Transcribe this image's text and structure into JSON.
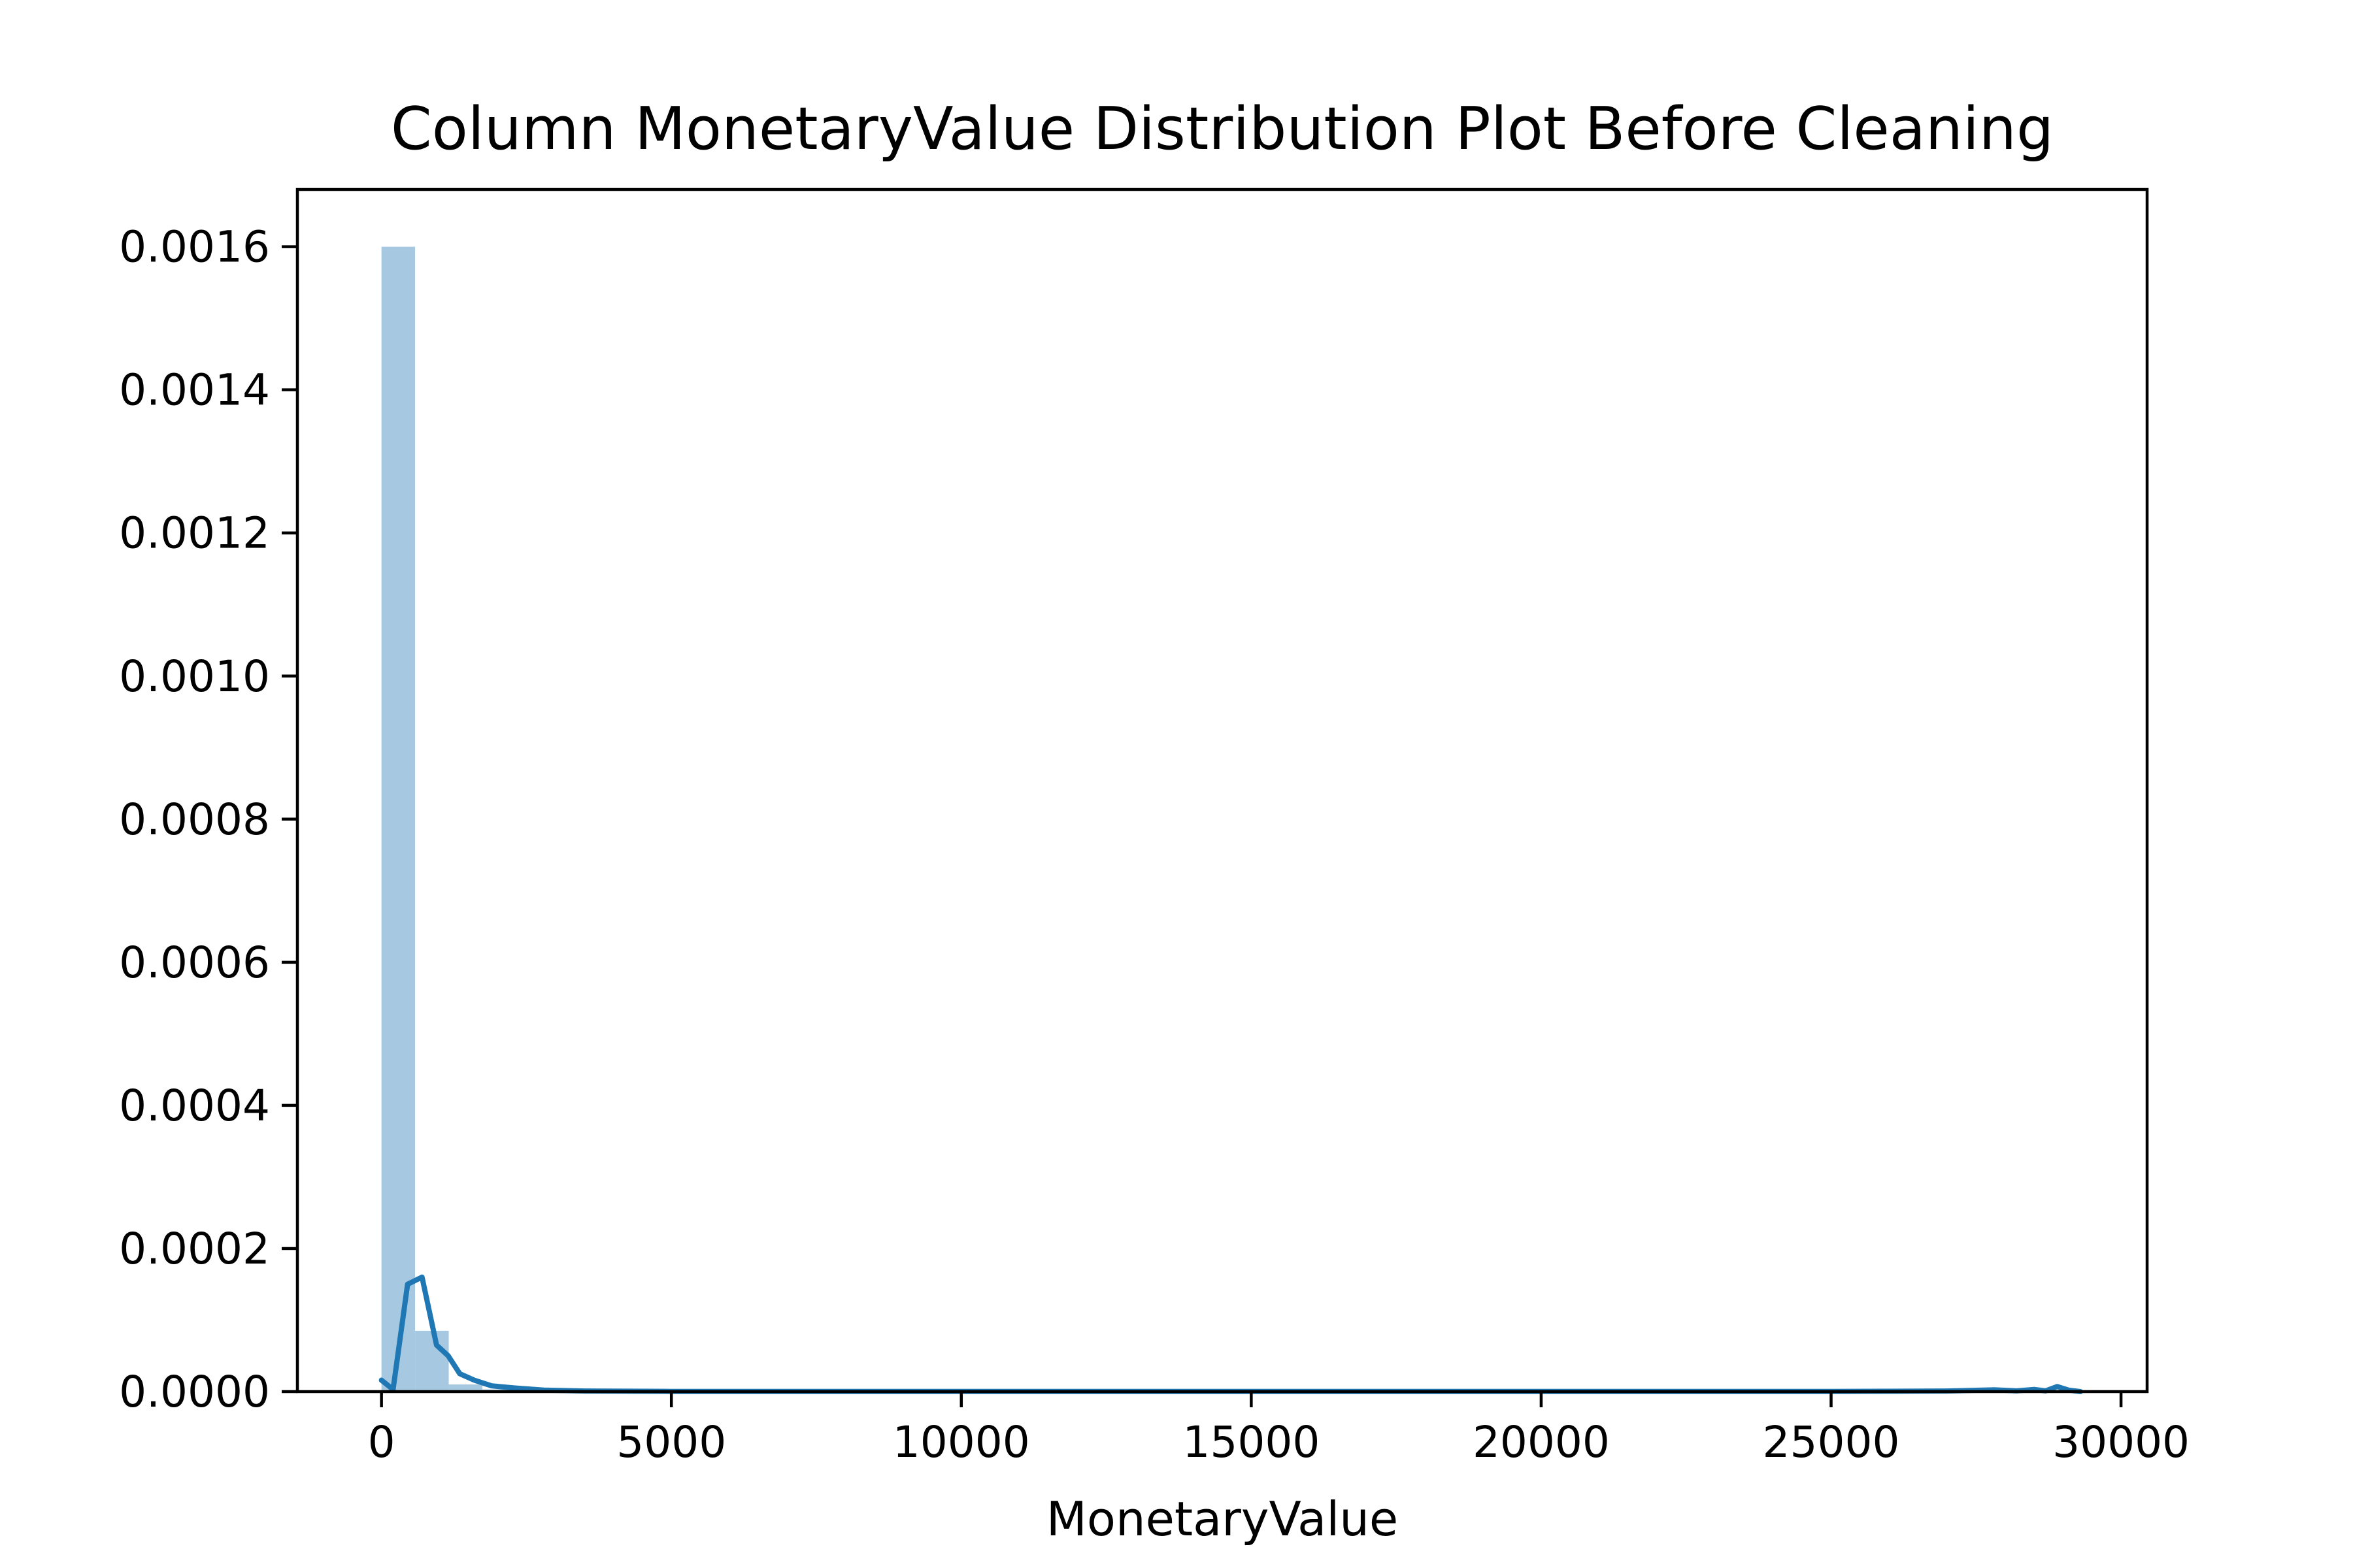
{
  "chart_data": {
    "type": "bar",
    "title": "Column MonetaryValue Distribution Plot Before Cleaning",
    "xlabel": "MonetaryValue",
    "ylabel": "",
    "xlim": [
      -1450,
      30450
    ],
    "ylim": [
      0,
      0.00168
    ],
    "xticks": [
      0,
      5000,
      10000,
      15000,
      20000,
      25000,
      30000
    ],
    "xtick_labels": [
      "0",
      "5000",
      "10000",
      "15000",
      "20000",
      "25000",
      "30000"
    ],
    "yticks": [
      0,
      0.0002,
      0.0004,
      0.0006,
      0.0008,
      0.001,
      0.0012,
      0.0014,
      0.0016
    ],
    "ytick_labels": [
      "0.0000",
      "0.0002",
      "0.0004",
      "0.0006",
      "0.0008",
      "0.0010",
      "0.0012",
      "0.0014",
      "0.0016"
    ],
    "grid": false,
    "histogram": {
      "bin_edges": [
        0,
        580,
        1160,
        1740,
        2320
      ],
      "values": [
        0.0016,
        8.5e-05,
        1e-05,
        3e-06
      ],
      "color": "#a6c9e1"
    },
    "kde": {
      "color": "#1f77b4",
      "x": [
        0,
        200,
        450,
        700,
        950,
        1150,
        1350,
        1600,
        1900,
        2300,
        2800,
        3500,
        5000,
        10000,
        15000,
        20000,
        25000,
        27000,
        27800,
        28200,
        28500,
        28700,
        28900,
        29100,
        29300
      ],
      "y": [
        1.6e-05,
        3e-06,
        0.00015,
        0.00016,
        6.5e-05,
        5e-05,
        2.5e-05,
        1.6e-05,
        8e-06,
        5e-06,
        2e-06,
        8e-07,
        3e-07,
        2e-07,
        2e-07,
        2e-07,
        2e-07,
        8e-07,
        2.5e-06,
        1e-06,
        3e-06,
        1e-06,
        7e-06,
        2e-06,
        0.0
      ]
    },
    "colors": {
      "axis": "#000000",
      "background": "#ffffff"
    }
  }
}
